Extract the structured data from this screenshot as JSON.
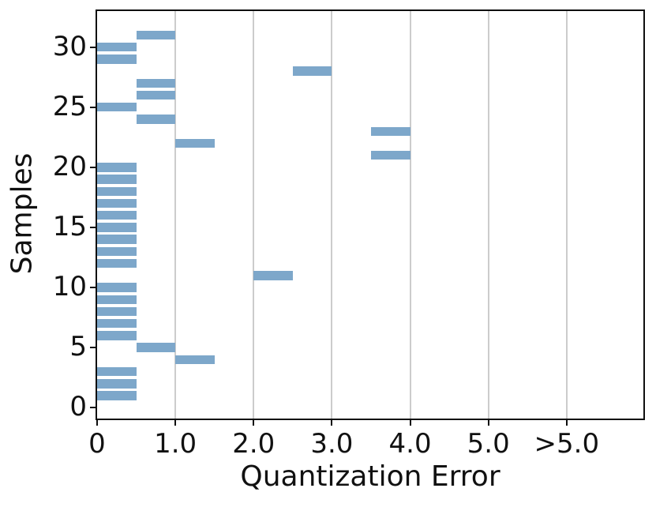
{
  "figure": {
    "background_color": "#ffffff",
    "spine_color": "#0f0f0f",
    "text_color": "#111111"
  },
  "chart_data": {
    "type": "bar",
    "orientation": "horizontal",
    "title": "",
    "xlabel": "Quantization Error",
    "ylabel": "Samples",
    "bar_color": "#7da7ca",
    "grid": {
      "axis": "x",
      "color": "#cccccc",
      "on": true
    },
    "xlim": [
      0,
      6.98
    ],
    "ylim": [
      -0.9,
      33.0
    ],
    "bar_height": 0.75,
    "x_ticks": [
      {
        "value": 0,
        "label": "0"
      },
      {
        "value": 1,
        "label": "1.0"
      },
      {
        "value": 2,
        "label": "2.0"
      },
      {
        "value": 3,
        "label": "3.0"
      },
      {
        "value": 4,
        "label": "4.0"
      },
      {
        "value": 5,
        "label": "5.0"
      },
      {
        "value": 6,
        "label": ">5.0"
      }
    ],
    "y_ticks": [
      {
        "value": 0,
        "label": "0"
      },
      {
        "value": 5,
        "label": "5"
      },
      {
        "value": 10,
        "label": "10"
      },
      {
        "value": 15,
        "label": "15"
      },
      {
        "value": 20,
        "label": "20"
      },
      {
        "value": 25,
        "label": "25"
      },
      {
        "value": 30,
        "label": "30"
      }
    ],
    "bars": [
      {
        "sample": 1,
        "bin": [
          0.0,
          0.5
        ]
      },
      {
        "sample": 2,
        "bin": [
          0.0,
          0.5
        ]
      },
      {
        "sample": 3,
        "bin": [
          0.0,
          0.5
        ]
      },
      {
        "sample": 4,
        "bin": [
          1.0,
          1.5
        ]
      },
      {
        "sample": 5,
        "bin": [
          0.5,
          1.0
        ]
      },
      {
        "sample": 6,
        "bin": [
          0.0,
          0.5
        ]
      },
      {
        "sample": 7,
        "bin": [
          0.0,
          0.5
        ]
      },
      {
        "sample": 8,
        "bin": [
          0.0,
          0.5
        ]
      },
      {
        "sample": 9,
        "bin": [
          0.0,
          0.5
        ]
      },
      {
        "sample": 10,
        "bin": [
          0.0,
          0.5
        ]
      },
      {
        "sample": 11,
        "bin": [
          2.0,
          2.5
        ]
      },
      {
        "sample": 12,
        "bin": [
          0.0,
          0.5
        ]
      },
      {
        "sample": 13,
        "bin": [
          0.0,
          0.5
        ]
      },
      {
        "sample": 14,
        "bin": [
          0.0,
          0.5
        ]
      },
      {
        "sample": 15,
        "bin": [
          0.0,
          0.5
        ]
      },
      {
        "sample": 16,
        "bin": [
          0.0,
          0.5
        ]
      },
      {
        "sample": 17,
        "bin": [
          0.0,
          0.5
        ]
      },
      {
        "sample": 18,
        "bin": [
          0.0,
          0.5
        ]
      },
      {
        "sample": 19,
        "bin": [
          0.0,
          0.5
        ]
      },
      {
        "sample": 20,
        "bin": [
          0.0,
          0.5
        ]
      },
      {
        "sample": 21,
        "bin": [
          3.5,
          4.0
        ]
      },
      {
        "sample": 22,
        "bin": [
          1.0,
          1.5
        ]
      },
      {
        "sample": 23,
        "bin": [
          3.5,
          4.0
        ]
      },
      {
        "sample": 24,
        "bin": [
          0.5,
          1.0
        ]
      },
      {
        "sample": 25,
        "bin": [
          0.0,
          0.5
        ]
      },
      {
        "sample": 26,
        "bin": [
          0.5,
          1.0
        ]
      },
      {
        "sample": 27,
        "bin": [
          0.5,
          1.0
        ]
      },
      {
        "sample": 28,
        "bin": [
          2.5,
          3.0
        ]
      },
      {
        "sample": 29,
        "bin": [
          0.0,
          0.5
        ]
      },
      {
        "sample": 30,
        "bin": [
          0.0,
          0.5
        ]
      },
      {
        "sample": 31,
        "bin": [
          0.5,
          1.0
        ]
      }
    ]
  }
}
